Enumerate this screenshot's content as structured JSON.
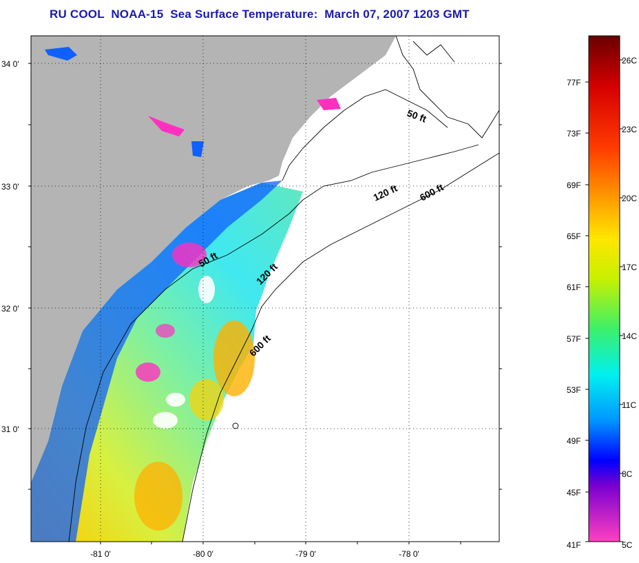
{
  "title": "RU COOL  NOAA-15  Sea Surface Temperature:  March 07, 2007 1203 GMT",
  "latitude_labels": [
    "34 0'",
    "33 0'",
    "32 0'",
    "31 0'"
  ],
  "longitude_labels": [
    "-81 0'",
    "-80 0'",
    "-79 0'",
    "-78 0'"
  ],
  "depth_contours": [
    "50 ft",
    "120 ft",
    "600 ft",
    "50 ft",
    "120 ft",
    "600 ft"
  ],
  "colorbar": {
    "fahrenheit_labels": [
      "77F",
      "73F",
      "69F",
      "65F",
      "61F",
      "57F",
      "53F",
      "49F",
      "45F",
      "41F"
    ],
    "celsius_labels": [
      "26C",
      "23C",
      "20C",
      "17C",
      "14C",
      "11C",
      "8C",
      "5C"
    ]
  },
  "colors": {
    "land": "#b4b4b4",
    "title": "#1a1aa8"
  }
}
